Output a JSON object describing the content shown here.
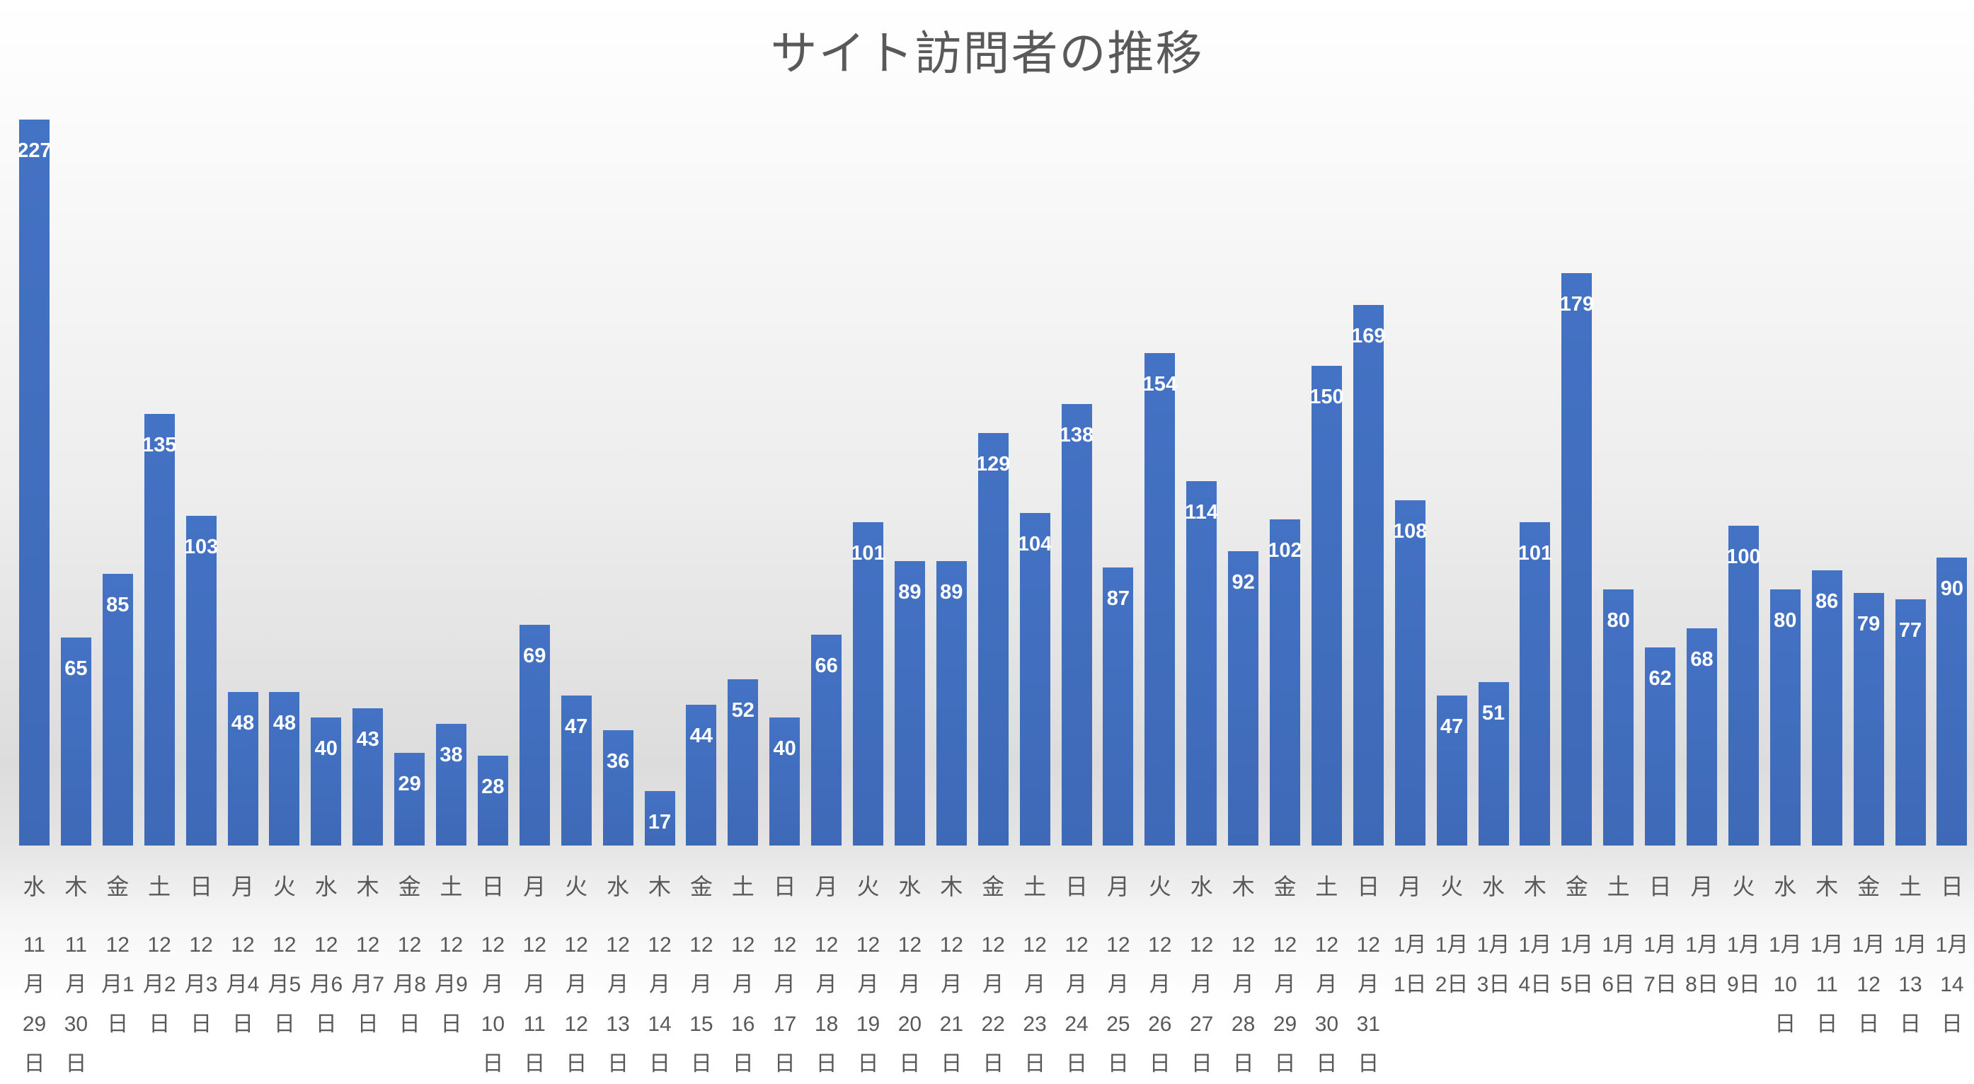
{
  "chart_data": {
    "type": "bar",
    "title": "サイト訪問者の推移",
    "xlabel": "",
    "ylabel": "",
    "ylim": [
      0,
      240
    ],
    "grid": false,
    "legend": "none",
    "bar_color": "#4472c4",
    "data_labels": true,
    "categories": [
      "11月29日",
      "11月30日",
      "12月1日",
      "12月2日",
      "12月3日",
      "12月4日",
      "12月5日",
      "12月6日",
      "12月7日",
      "12月8日",
      "12月9日",
      "12月10日",
      "12月11日",
      "12月12日",
      "12月13日",
      "12月14日",
      "12月15日",
      "12月16日",
      "12月17日",
      "12月18日",
      "12月19日",
      "12月20日",
      "12月21日",
      "12月22日",
      "12月23日",
      "12月24日",
      "12月25日",
      "12月26日",
      "12月27日",
      "12月28日",
      "12月29日",
      "12月30日",
      "12月31日",
      "1月1日",
      "1月2日",
      "1月3日",
      "1月4日",
      "1月5日",
      "1月6日",
      "1月7日",
      "1月8日",
      "1月9日",
      "1月10日",
      "1月11日",
      "1月12日",
      "1月13日",
      "1月14日"
    ],
    "weekdays": [
      "水",
      "木",
      "金",
      "土",
      "日",
      "月",
      "火",
      "水",
      "木",
      "金",
      "土",
      "日",
      "月",
      "火",
      "水",
      "木",
      "金",
      "土",
      "日",
      "月",
      "火",
      "水",
      "木",
      "金",
      "土",
      "日",
      "月",
      "火",
      "水",
      "木",
      "金",
      "土",
      "日",
      "月",
      "火",
      "水",
      "木",
      "金",
      "土",
      "日",
      "月",
      "火",
      "水",
      "木",
      "金",
      "土",
      "日"
    ],
    "values": [
      227,
      65,
      85,
      135,
      103,
      48,
      48,
      40,
      43,
      29,
      38,
      28,
      69,
      47,
      36,
      17,
      44,
      52,
      40,
      66,
      101,
      89,
      89,
      129,
      104,
      138,
      87,
      154,
      114,
      92,
      102,
      150,
      169,
      108,
      47,
      51,
      101,
      179,
      80,
      62,
      68,
      100,
      80,
      86,
      79,
      77,
      90
    ]
  }
}
